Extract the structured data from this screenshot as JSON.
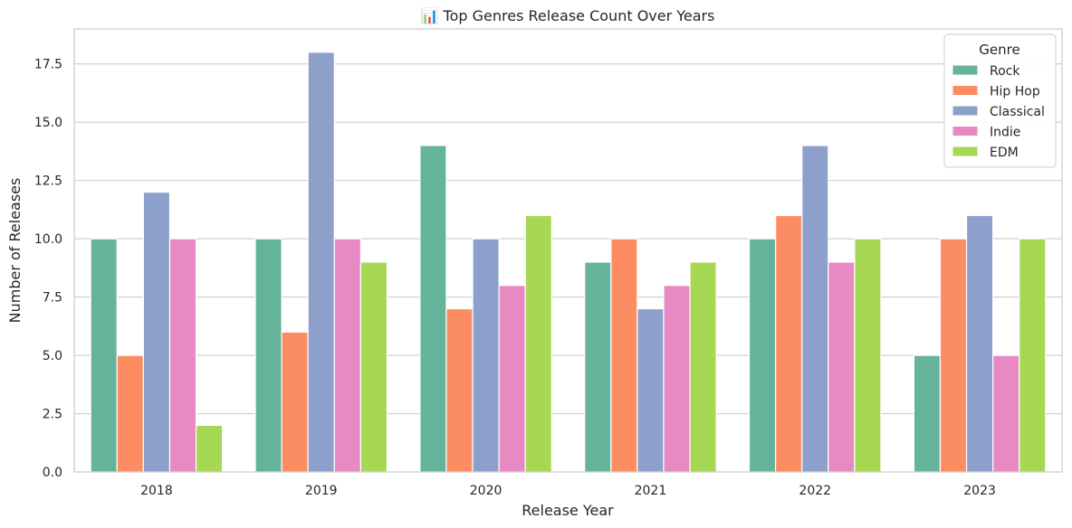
{
  "chart_data": {
    "type": "bar",
    "title": "📊 Top Genres Release Count Over Years",
    "xlabel": "Release Year",
    "ylabel": "Number of Releases",
    "categories": [
      "2018",
      "2019",
      "2020",
      "2021",
      "2022",
      "2023"
    ],
    "ylim": [
      0,
      19
    ],
    "yticks": [
      0.0,
      2.5,
      5.0,
      7.5,
      10.0,
      12.5,
      15.0,
      17.5
    ],
    "ytick_labels": [
      "0.0",
      "2.5",
      "5.0",
      "7.5",
      "10.0",
      "12.5",
      "15.0",
      "17.5"
    ],
    "grid": "horizontal",
    "legend": {
      "title": "Genre",
      "placement": "top-right"
    },
    "series": [
      {
        "name": "Rock",
        "color": "#66b39b",
        "values": [
          10,
          10,
          14,
          9,
          10,
          5
        ]
      },
      {
        "name": "Hip Hop",
        "color": "#fc8d62",
        "values": [
          5,
          6,
          7,
          10,
          11,
          10
        ]
      },
      {
        "name": "Classical",
        "color": "#8da0cb",
        "values": [
          12,
          18,
          10,
          7,
          14,
          11
        ]
      },
      {
        "name": "Indie",
        "color": "#e78ac3",
        "values": [
          10,
          10,
          8,
          8,
          9,
          5
        ]
      },
      {
        "name": "EDM",
        "color": "#a6d854",
        "values": [
          2,
          9,
          11,
          9,
          10,
          10
        ]
      }
    ]
  }
}
